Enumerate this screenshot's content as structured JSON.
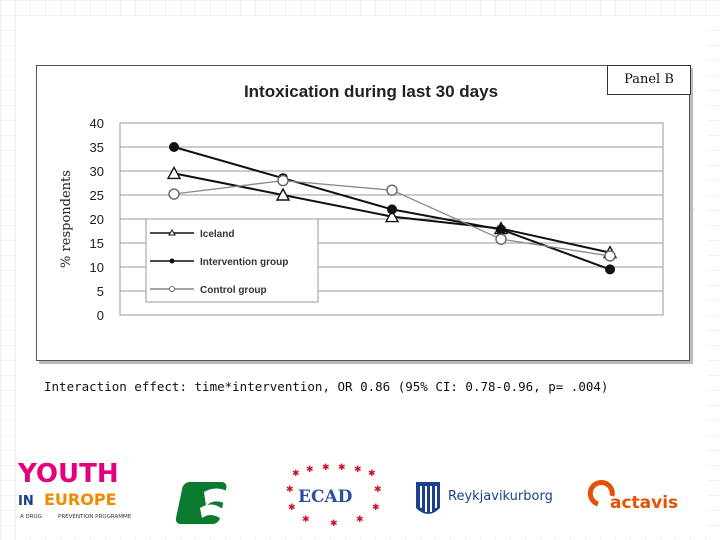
{
  "slide": {
    "panel_label": "Panel B",
    "caption": "Interaction effect: time*intervention, OR 0.86 (95% CI: 0.78-0.96, p= .004)"
  },
  "chart_data": {
    "type": "line",
    "title": "Intoxication during last 30 days",
    "xlabel": "",
    "ylabel": "% respondents",
    "ylim": [
      0,
      40
    ],
    "yticks": [
      0,
      5,
      10,
      15,
      20,
      25,
      30,
      35,
      40
    ],
    "x": [
      1,
      2,
      3,
      4,
      5
    ],
    "grid": true,
    "legend_position": "lower-left",
    "series": [
      {
        "name": "Iceland",
        "values": [
          29.5,
          25.0,
          20.5,
          18.0,
          13.0
        ],
        "marker": "triangle",
        "color": "#111111"
      },
      {
        "name": "Intervention group",
        "values": [
          35.0,
          28.5,
          22.0,
          17.8,
          9.5
        ],
        "marker": "filled-circle",
        "color": "#111111"
      },
      {
        "name": "Control group",
        "values": [
          25.2,
          28.0,
          26.0,
          15.8,
          12.3
        ],
        "marker": "open-circle",
        "color": "#888888"
      }
    ]
  },
  "logos": {
    "youth_top": "YOUTH",
    "youth_in": "IN",
    "youth_europe": "EUROPE",
    "youth_sub_left": "A DRUG",
    "youth_sub_right": "PREVENTION PROGRAMME",
    "ecad": "ECAD",
    "reykjavik": "Reykjavikurborg",
    "actavis": "actavis",
    "colors": {
      "youth": "#e4007d",
      "europe": "#f08a00",
      "green_logo": "#0a7a2e",
      "ecad": "#2b4fa0",
      "ecad_stars": "#d0102b",
      "reykjavik": "#1c3f8f",
      "actavis": "#e35205"
    }
  }
}
